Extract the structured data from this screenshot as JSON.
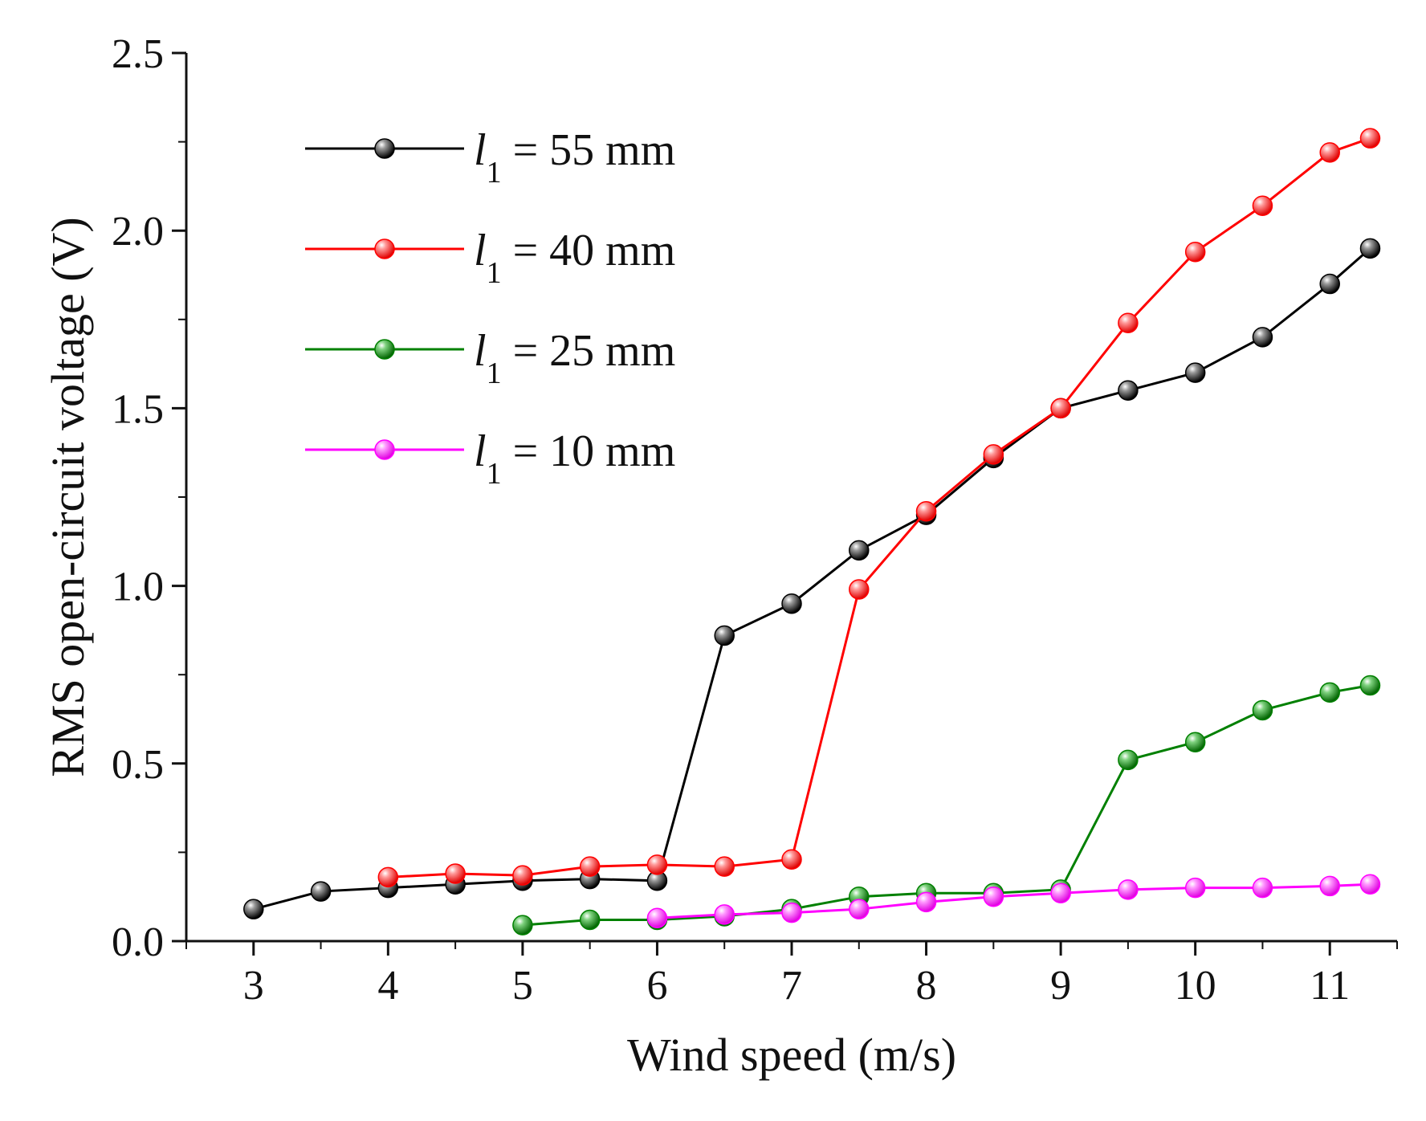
{
  "chart_data": {
    "type": "line",
    "xlabel": "Wind speed (m/s)",
    "ylabel": "RMS open-circuit voltage (V)",
    "xlim": [
      2.5,
      11.5
    ],
    "ylim": [
      0.0,
      2.5
    ],
    "xticks": [
      3,
      4,
      5,
      6,
      7,
      8,
      9,
      10,
      11
    ],
    "xtick_labels": [
      "3",
      "4",
      "5",
      "6",
      "7",
      "8",
      "9",
      "10",
      "11"
    ],
    "yticks": [
      0.0,
      0.5,
      1.0,
      1.5,
      2.0,
      2.5
    ],
    "ytick_labels": [
      "0.0",
      "0.5",
      "1.0",
      "1.5",
      "2.0",
      "2.5"
    ],
    "legend_position": "top-left",
    "series": [
      {
        "name": "l1 = 55 mm",
        "legend_var": "l",
        "legend_sub": "1",
        "legend_rest": " = 55 mm",
        "color": "#000000",
        "x": [
          3,
          3.5,
          4,
          4.5,
          5,
          5.5,
          6,
          6.5,
          7,
          7.5,
          8,
          8.5,
          9,
          9.5,
          10,
          10.5,
          11,
          11.3
        ],
        "y": [
          0.09,
          0.14,
          0.15,
          0.16,
          0.17,
          0.175,
          0.17,
          0.86,
          0.95,
          1.1,
          1.2,
          1.36,
          1.5,
          1.55,
          1.6,
          1.7,
          1.85,
          1.95
        ]
      },
      {
        "name": "l1 = 40 mm",
        "legend_var": "l",
        "legend_sub": "1",
        "legend_rest": " = 40 mm",
        "color": "#ff0000",
        "x": [
          4,
          4.5,
          5,
          5.5,
          6,
          6.5,
          7,
          7.5,
          8,
          8.5,
          9,
          9.5,
          10,
          10.5,
          11,
          11.3
        ],
        "y": [
          0.18,
          0.19,
          0.185,
          0.21,
          0.215,
          0.21,
          0.23,
          0.99,
          1.21,
          1.37,
          1.5,
          1.74,
          1.94,
          2.07,
          2.22,
          2.26
        ]
      },
      {
        "name": "l1 = 25 mm",
        "legend_var": "l",
        "legend_sub": "1",
        "legend_rest": " = 25 mm",
        "color": "#008000",
        "x": [
          5,
          5.5,
          6,
          6.5,
          7,
          7.5,
          8,
          8.5,
          9,
          9.5,
          10,
          10.5,
          11,
          11.3
        ],
        "y": [
          0.045,
          0.06,
          0.06,
          0.07,
          0.09,
          0.125,
          0.135,
          0.135,
          0.145,
          0.51,
          0.56,
          0.65,
          0.7,
          0.72
        ]
      },
      {
        "name": "l1 = 10 mm",
        "legend_var": "l",
        "legend_sub": "1",
        "legend_rest": " = 10 mm",
        "color": "#ff00ff",
        "x": [
          6,
          6.5,
          7,
          7.5,
          8,
          8.5,
          9,
          9.5,
          10,
          10.5,
          11,
          11.3
        ],
        "y": [
          0.065,
          0.075,
          0.08,
          0.09,
          0.11,
          0.125,
          0.135,
          0.145,
          0.15,
          0.15,
          0.155,
          0.16
        ]
      }
    ]
  }
}
